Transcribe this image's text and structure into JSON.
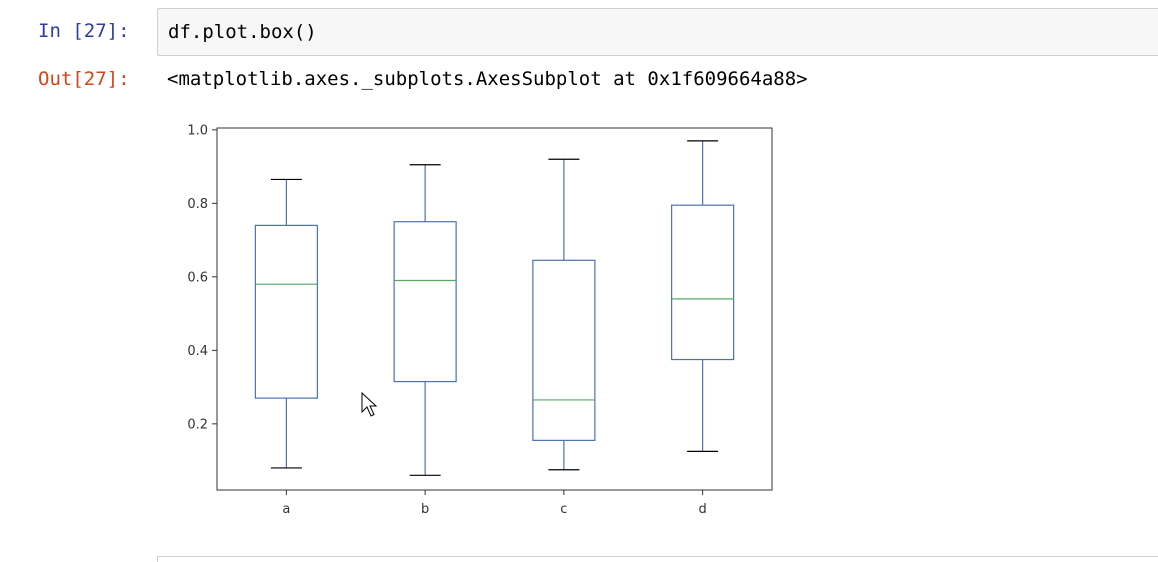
{
  "cell": {
    "in_prompt": "In [27]:",
    "input_code": "df.plot.box()",
    "out_prompt": "Out[27]:",
    "output_text": "<matplotlib.axes._subplots.AxesSubplot at 0x1f609664a88>"
  },
  "chart_data": {
    "type": "box",
    "categories": [
      "a",
      "b",
      "c",
      "d"
    ],
    "boxes": [
      {
        "name": "a",
        "whislo": 0.08,
        "q1": 0.27,
        "med": 0.58,
        "q3": 0.74,
        "whishi": 0.865
      },
      {
        "name": "b",
        "whislo": 0.06,
        "q1": 0.315,
        "med": 0.59,
        "q3": 0.75,
        "whishi": 0.905
      },
      {
        "name": "c",
        "whislo": 0.075,
        "q1": 0.155,
        "med": 0.265,
        "q3": 0.645,
        "whishi": 0.92
      },
      {
        "name": "d",
        "whislo": 0.125,
        "q1": 0.375,
        "med": 0.54,
        "q3": 0.795,
        "whishi": 0.97
      }
    ],
    "yticks": [
      "0.2",
      "0.4",
      "0.6",
      "0.8",
      "1.0"
    ],
    "ylim": [
      0.02,
      1.005
    ],
    "colors": {
      "box": "#4c72b0",
      "median": "#55a868",
      "whisker": "#4c72b0",
      "cap": "#000000",
      "frame": "#333333"
    }
  }
}
